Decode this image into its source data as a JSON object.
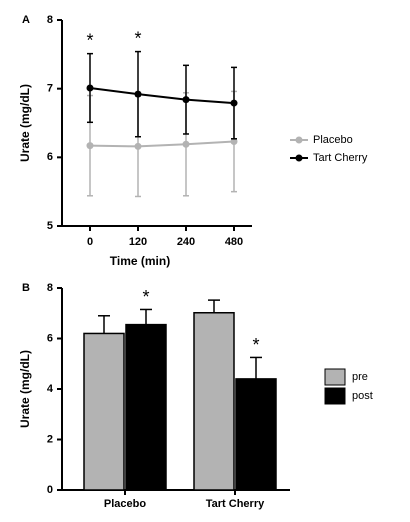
{
  "chart_data": [
    {
      "type": "line",
      "panel": "A",
      "y_label": "Urate (mg/dL)",
      "x_label": "Time (min)",
      "categories": [
        "0",
        "120",
        "240",
        "480"
      ],
      "ylim": [
        5,
        8
      ],
      "yticks": [
        5,
        6,
        7,
        8
      ],
      "series": [
        {
          "name": "Placebo",
          "color": "#b3b3b3",
          "values": [
            6.17,
            6.16,
            6.19,
            6.23
          ],
          "errors": [
            0.73,
            0.73,
            0.75,
            0.73
          ]
        },
        {
          "name": "Tart Cherry",
          "color": "#000000",
          "values": [
            7.01,
            6.92,
            6.84,
            6.79
          ],
          "errors": [
            0.5,
            0.62,
            0.5,
            0.52
          ]
        }
      ],
      "annotations": [
        {
          "text": "*",
          "category": "0"
        },
        {
          "text": "*",
          "category": "120"
        }
      ]
    },
    {
      "type": "bar",
      "panel": "B",
      "y_label": "Urate (mg/dL)",
      "categories": [
        "Placebo",
        "Tart Cherry"
      ],
      "ylim": [
        0,
        8
      ],
      "yticks": [
        0,
        2,
        4,
        6,
        8
      ],
      "series": [
        {
          "name": "pre",
          "color": "#b3b3b3",
          "values": [
            6.2,
            7.02
          ],
          "errors": [
            0.7,
            0.5
          ]
        },
        {
          "name": "post",
          "color": "#000000",
          "values": [
            6.55,
            4.4
          ],
          "errors": [
            0.6,
            0.85
          ]
        }
      ],
      "annotations": [
        {
          "text": "*",
          "category": "Placebo",
          "series": "post"
        },
        {
          "text": "*",
          "category": "Tart Cherry",
          "series": "post"
        }
      ]
    }
  ]
}
